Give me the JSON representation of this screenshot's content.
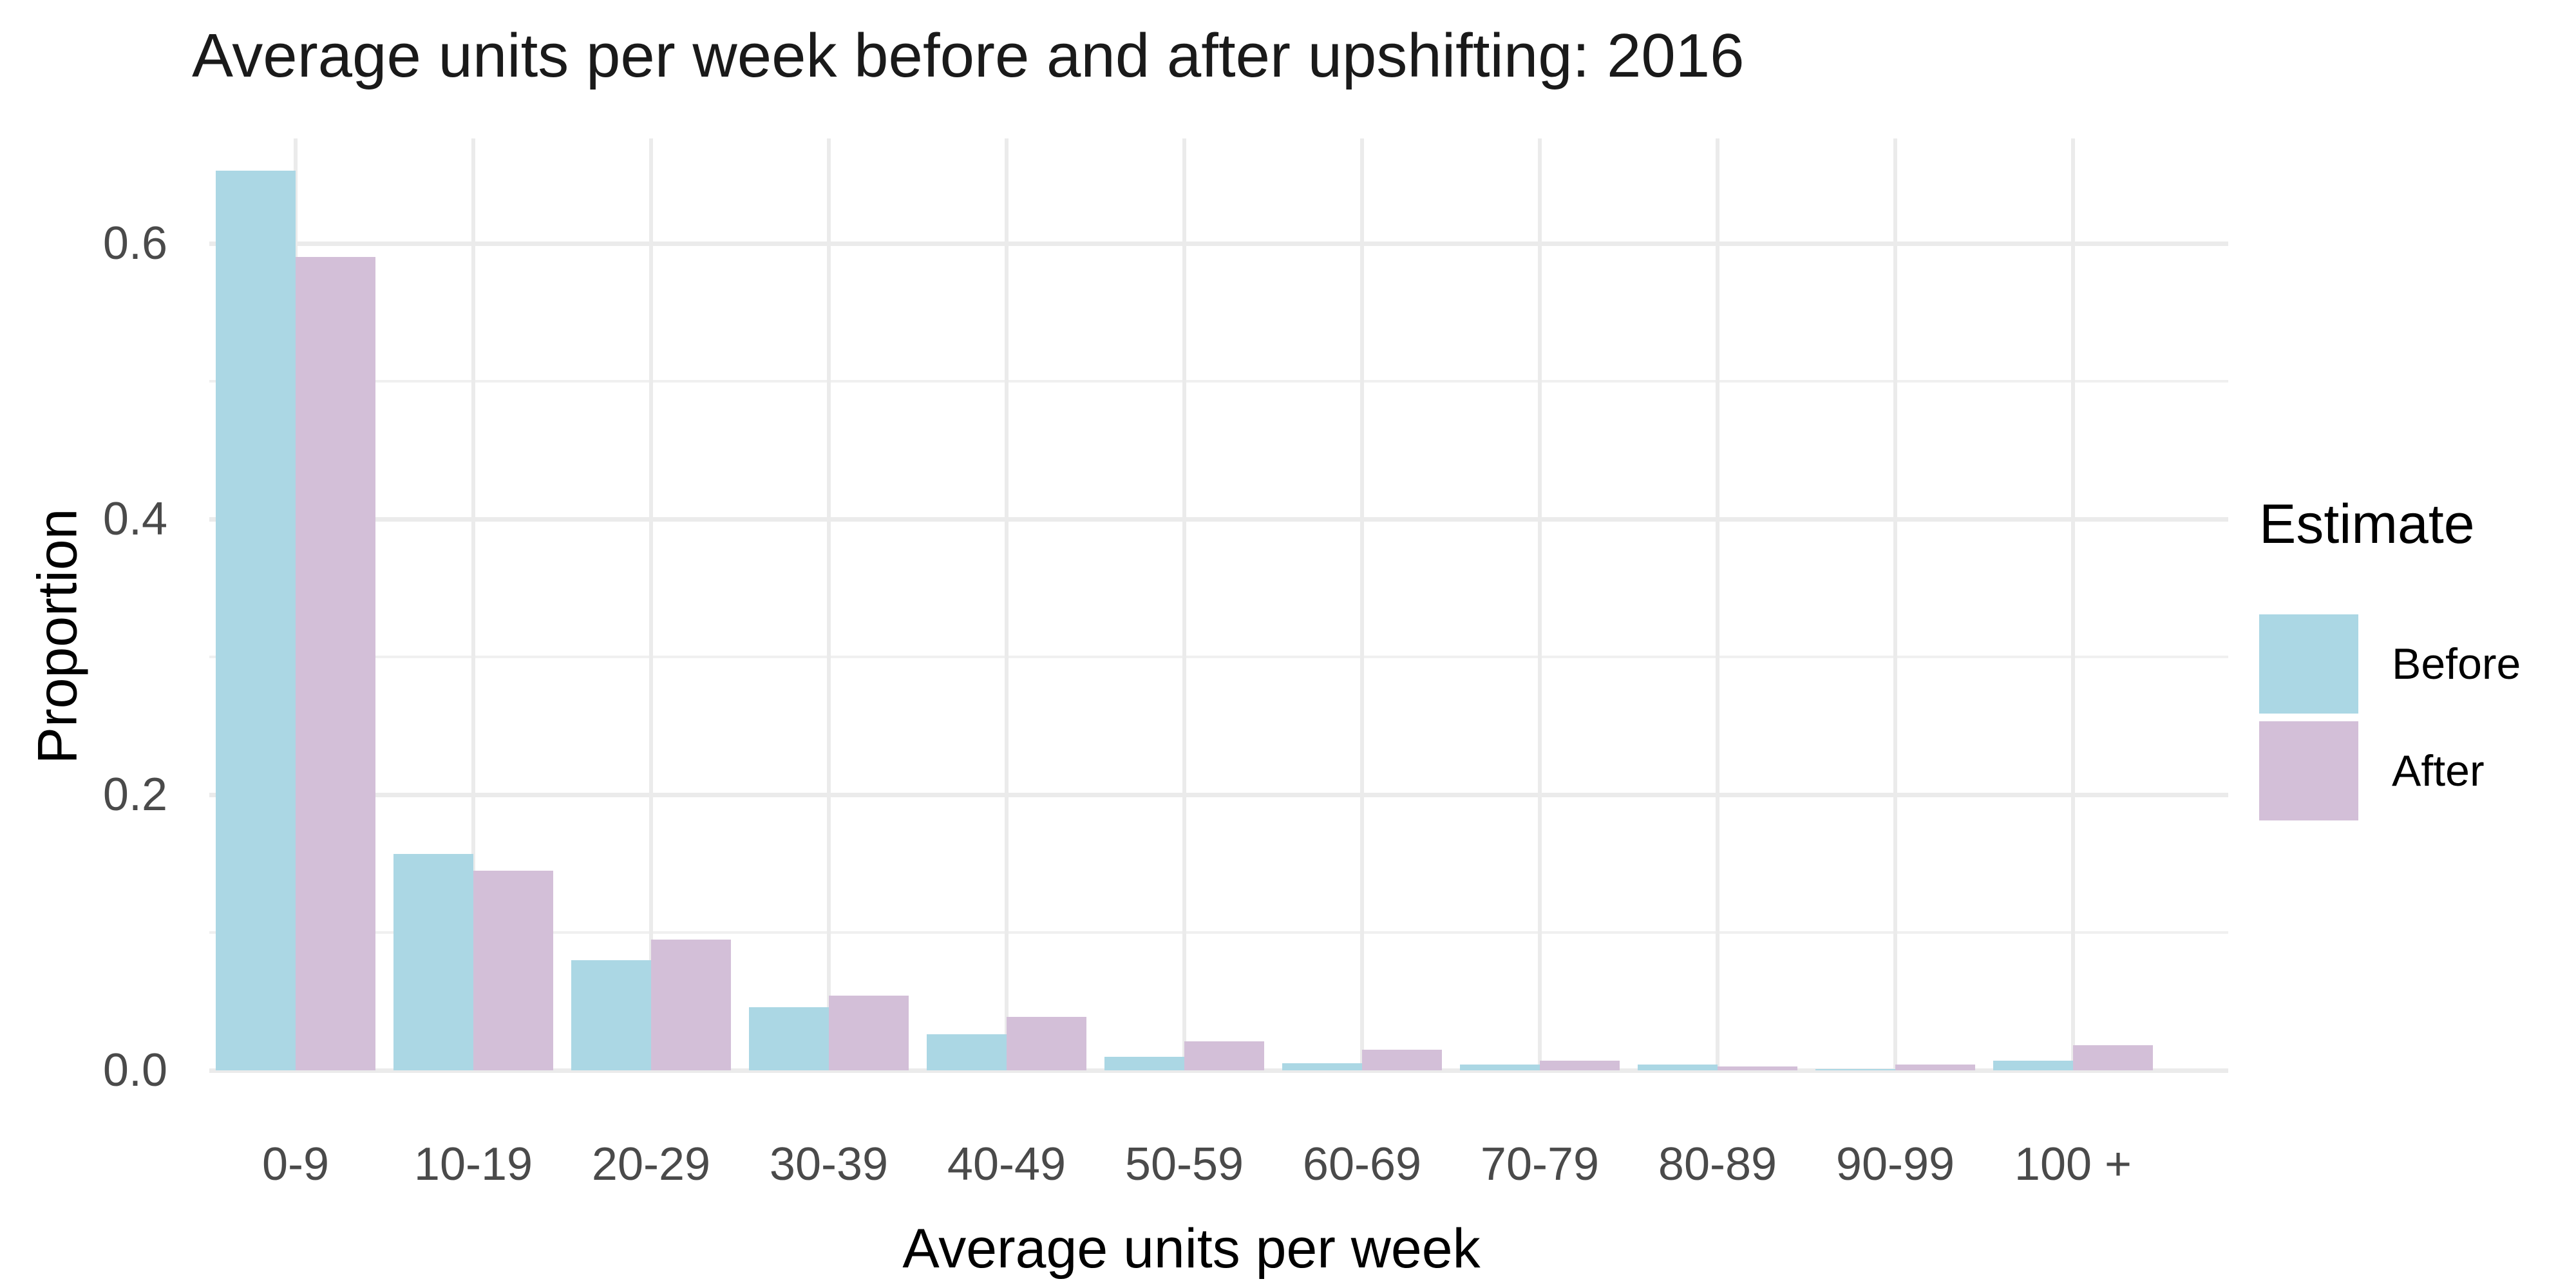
{
  "chart_data": {
    "type": "bar",
    "grouping": "dodged",
    "title": "Average units per week before and after upshifting: 2016",
    "xlabel": "Average units per week",
    "ylabel": "Proportion",
    "categories": [
      "0-9",
      "10-19",
      "20-29",
      "30-39",
      "40-49",
      "50-59",
      "60-69",
      "70-79",
      "80-89",
      "90-99",
      "100 +"
    ],
    "series": [
      {
        "name": "Before",
        "color": "#abd7e4",
        "values": [
          0.653,
          0.157,
          0.08,
          0.046,
          0.026,
          0.01,
          0.005,
          0.004,
          0.004,
          0.001,
          0.007
        ]
      },
      {
        "name": "After",
        "color": "#d3bfd8",
        "values": [
          0.59,
          0.145,
          0.095,
          0.054,
          0.039,
          0.021,
          0.015,
          0.007,
          0.003,
          0.004,
          0.018
        ]
      }
    ],
    "ylim": [
      0,
      0.676
    ],
    "ytick_values": [
      0,
      0.2,
      0.4,
      0.6
    ],
    "ytick_labels": [
      "0.0",
      "0.2",
      "0.4",
      "0.6"
    ],
    "grid": {
      "h_major_step": 0.2,
      "h_minor_step": 0.1,
      "v_lines": "category-centers",
      "color": "#ebebeb",
      "background": "#ffffff"
    },
    "legend": {
      "title": "Estimate",
      "position": "right",
      "entries": [
        "Before",
        "After"
      ]
    }
  },
  "colors": {
    "background": "#ffffff",
    "grid": "#ebebeb",
    "tick_text": "#4a4a4a",
    "title_text": "#1a1a1a",
    "before": "#abd7e4",
    "after": "#d3bfd8"
  }
}
